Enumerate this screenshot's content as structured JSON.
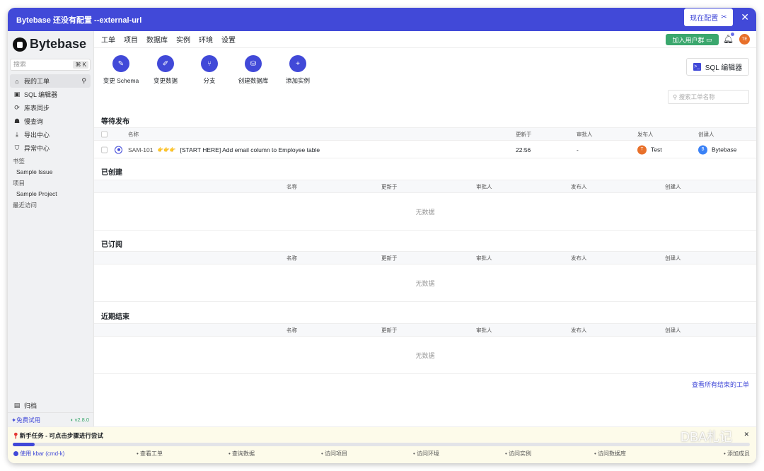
{
  "banner": {
    "text": "Bytebase 还没有配置 --external-url",
    "configure": "现在配置",
    "close": "✕"
  },
  "sidebar": {
    "logo": "Bytebase",
    "search_placeholder": "搜索",
    "shortcut": "⌘ K",
    "items": [
      {
        "label": "我的工单",
        "icon": "home-icon"
      },
      {
        "label": "SQL 编辑器",
        "icon": "terminal-icon"
      },
      {
        "label": "库表同步",
        "icon": "sync-icon"
      },
      {
        "label": "慢查询",
        "icon": "turtle-icon"
      },
      {
        "label": "导出中心",
        "icon": "download-icon"
      },
      {
        "label": "异常中心",
        "icon": "shield-icon"
      }
    ],
    "bookmarks_label": "书签",
    "bookmarks": [
      "Sample Issue"
    ],
    "projects_label": "项目",
    "projects": [
      "Sample Project"
    ],
    "recent_label": "最近访问",
    "archive": "归档",
    "free_trial": "免费试用",
    "version": "v2.8.0"
  },
  "topnav": {
    "items": [
      "工单",
      "项目",
      "数据库",
      "实例",
      "环境",
      "设置"
    ],
    "join": "加入用户群",
    "avatar": "TE"
  },
  "actions": [
    {
      "label": "变更 Schema",
      "icon": "edit-icon"
    },
    {
      "label": "变更数据",
      "icon": "pencil-icon"
    },
    {
      "label": "分支",
      "icon": "branch-icon"
    },
    {
      "label": "创建数据库",
      "icon": "database-icon"
    },
    {
      "label": "添加实例",
      "icon": "plus-icon"
    }
  ],
  "sql_editor": "SQL 编辑器",
  "issue_search_placeholder": "搜索工单名称",
  "columns": {
    "name": "名称",
    "updated": "更新于",
    "approver": "审批人",
    "releaser": "发布人",
    "creator": "创建人"
  },
  "sections": [
    {
      "title": "等待发布",
      "rows": [
        {
          "id": "SAM-101",
          "emoji": "👉👉👉",
          "title": "[START HERE] Add email column to Employee table",
          "updated": "22:56",
          "approver": "-",
          "releaser": "Test",
          "releaser_initial": "T",
          "creator": "Bytebase",
          "creator_initial": "B"
        }
      ]
    },
    {
      "title": "已创建",
      "empty": "无数据"
    },
    {
      "title": "已订阅",
      "empty": "无数据"
    },
    {
      "title": "近期结束",
      "empty": "无数据"
    }
  ],
  "view_all_closed": "查看所有结束的工单",
  "onboarding": {
    "title": "新手任务 - 可点击步骤进行尝试",
    "progress": 0.03,
    "steps": [
      "使用 kbar (cmd-k)",
      "查看工单",
      "查询数据",
      "访问项目",
      "访问环境",
      "访问实例",
      "访问数据库",
      "添加成员"
    ]
  },
  "watermark": "DBA札记",
  "colors": {
    "accent": "#4149d8",
    "green": "#3aa76d",
    "orange": "#e8702a",
    "blue": "#3b82f6"
  }
}
